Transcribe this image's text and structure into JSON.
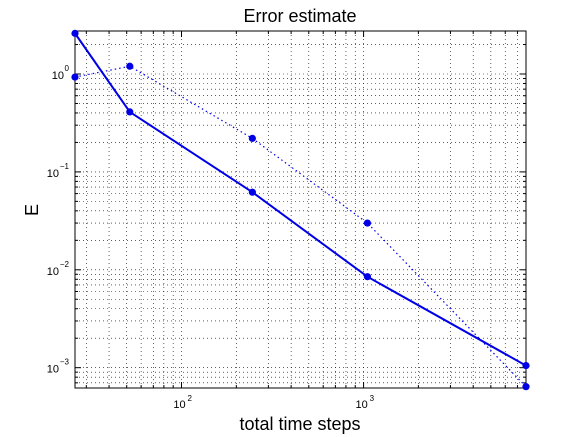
{
  "chart_data": {
    "type": "line",
    "title": "Error estimate",
    "xlabel": "total time steps",
    "ylabel": "E",
    "x_scale": "log",
    "y_scale": "log",
    "xlim": [
      26,
      7800
    ],
    "ylim": [
      0.00062,
      2.75
    ],
    "grid": true,
    "x_ticks": [
      {
        "value": 100,
        "base": "10",
        "exp": "2"
      },
      {
        "value": 1000,
        "base": "10",
        "exp": "3"
      }
    ],
    "y_ticks": [
      {
        "value": 0.001,
        "base": "10",
        "exp": "−3"
      },
      {
        "value": 0.01,
        "base": "10",
        "exp": "−2"
      },
      {
        "value": 0.1,
        "base": "10",
        "exp": "−1"
      },
      {
        "value": 1,
        "base": "10",
        "exp": "0"
      }
    ],
    "series": [
      {
        "style": "solid",
        "color": "#0000e6",
        "x": [
          26,
          52,
          245,
          1050,
          7800
        ],
        "y": [
          2.6,
          0.41,
          0.062,
          0.0085,
          0.00105
        ]
      },
      {
        "style": "dotted",
        "color": "#0000e6",
        "x": [
          26,
          52,
          245,
          1050,
          7800
        ],
        "y": [
          0.93,
          1.2,
          0.22,
          0.03,
          0.00064
        ]
      }
    ]
  }
}
